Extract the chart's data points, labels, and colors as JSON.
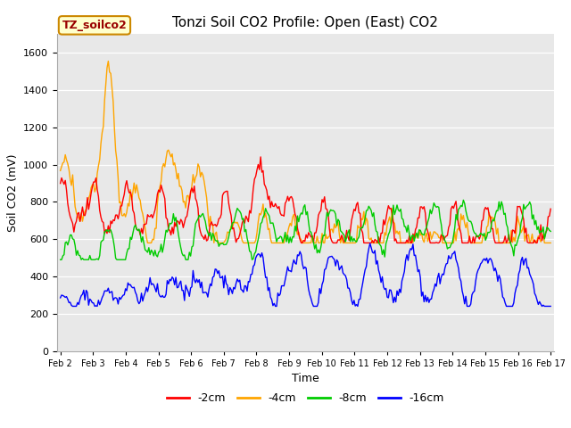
{
  "title": "Tonzi Soil CO2 Profile: Open (East) CO2",
  "xlabel": "Time",
  "ylabel": "Soil CO2 (mV)",
  "ylim": [
    0,
    1700
  ],
  "yticks": [
    0,
    200,
    400,
    600,
    800,
    1000,
    1200,
    1400,
    1600
  ],
  "fig_bg_color": "#ffffff",
  "plot_bg_color": "#e8e8e8",
  "legend_label": "TZ_soilco2",
  "legend_color": "#ffffcc",
  "legend_border_color": "#cc8800",
  "legend_text_color": "#990000",
  "series_colors": [
    "#ff0000",
    "#ffa500",
    "#00cc00",
    "#0000ff"
  ],
  "series_labels": [
    "-2cm",
    "-4cm",
    "-8cm",
    "-16cm"
  ],
  "x_tick_labels": [
    "Feb 2",
    "Feb 3",
    "Feb 4",
    "Feb 5",
    "Feb 6",
    "Feb 7",
    "Feb 8",
    "Feb 9",
    "Feb 10",
    "Feb 11",
    "Feb 12",
    "Feb 13",
    "Feb 14",
    "Feb 15",
    "Feb 16",
    "Feb 17"
  ],
  "n_points": 400
}
